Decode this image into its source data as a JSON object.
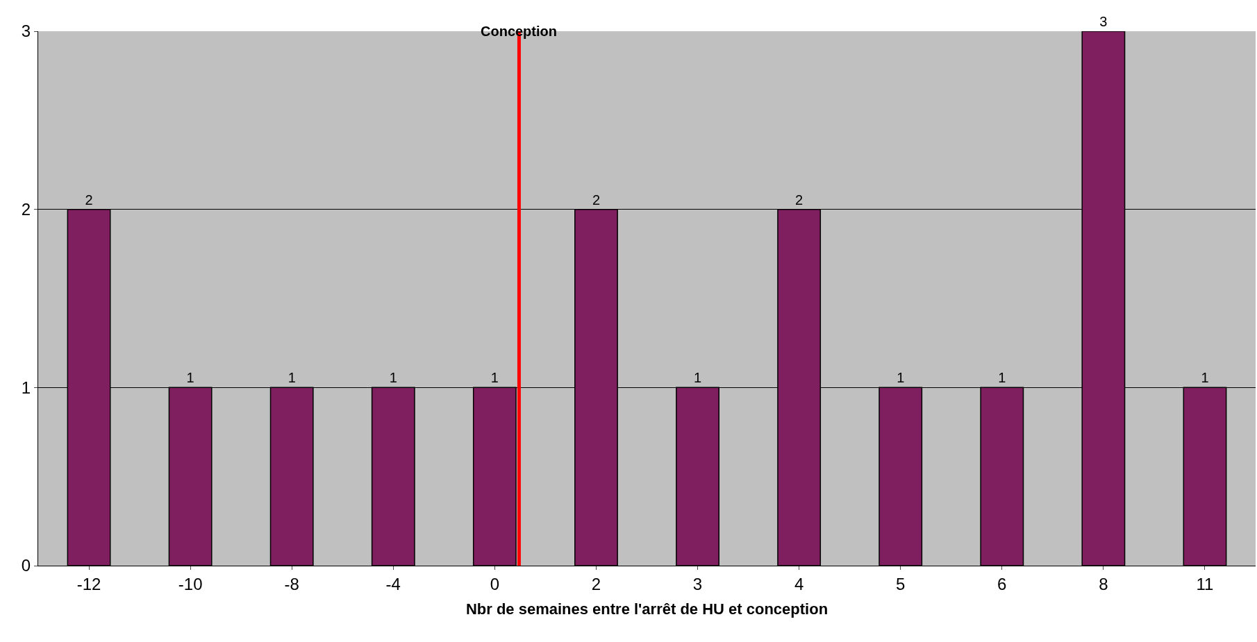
{
  "chart_data": {
    "type": "bar",
    "xlabel": "Nbr de semaines entre l'arrêt de HU et conception",
    "categories": [
      "-12",
      "-10",
      "-8",
      "-4",
      "0",
      "2",
      "3",
      "4",
      "5",
      "6",
      "8",
      "11"
    ],
    "values": [
      2,
      1,
      1,
      1,
      1,
      2,
      1,
      2,
      1,
      1,
      3,
      1
    ],
    "color": "#7f1f5f",
    "ylim": [
      0,
      3
    ],
    "yticks": [
      0,
      1,
      2,
      3
    ],
    "grid": "y",
    "data_labels": true,
    "legend": false,
    "ref_lines": [
      {
        "axis": "x",
        "value": "0",
        "label": "Conception",
        "color": "#ff0000"
      }
    ]
  }
}
